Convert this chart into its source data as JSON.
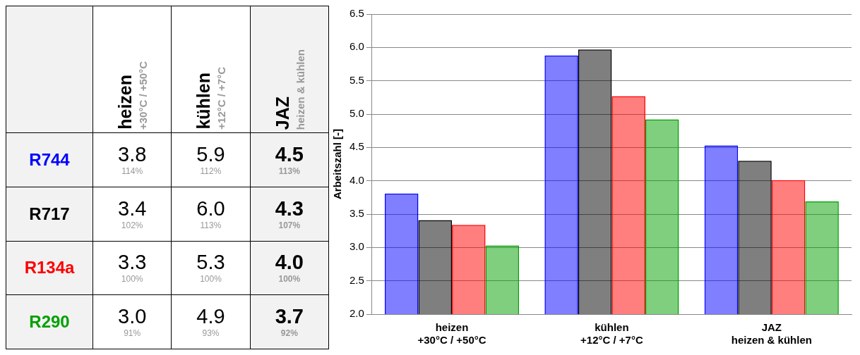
{
  "chart_data": [
    {
      "type": "other",
      "categories": [
        "heizen\n+30°C / +50°C",
        "kühlen\n+12°C / +7°C",
        "JAZ\nheizen & kühlen"
      ],
      "y_categories": [
        "R744",
        "R717",
        "R134a",
        "R290"
      ],
      "cell_labels": [
        [
          "3.8",
          "5.9",
          "4.5"
        ],
        [
          "3.4",
          "6.0",
          "4.3"
        ],
        [
          "3.3",
          "5.3",
          "4.0"
        ],
        [
          "3.0",
          "4.9",
          "3.7"
        ]
      ],
      "annotations": [
        "114%",
        "112%",
        "113%",
        "102%",
        "113%",
        "107%",
        "100%",
        "100%",
        "100%",
        "91%",
        "93%",
        "92%"
      ]
    },
    {
      "type": "bar",
      "ylabel": "Arbeitszahl [-]",
      "categories": [
        "heizen\n+30°C / +50°C",
        "kühlen\n+12°C / +7°C",
        "JAZ\nheizen & kühlen"
      ],
      "series": [
        {
          "color": "#0000ff",
          "values": [
            3.81,
            5.88,
            4.53
          ]
        },
        {
          "color": "#000000",
          "values": [
            3.41,
            5.97,
            4.3
          ]
        },
        {
          "color": "#ff0000",
          "values": [
            3.34,
            5.27,
            4.01
          ]
        },
        {
          "color": "#00a000",
          "values": [
            3.03,
            4.92,
            3.69
          ]
        }
      ],
      "ylim": [
        2.0,
        6.5
      ],
      "yticks": [
        {
          "value": 2,
          "label": "2.0"
        },
        {
          "value": 2.5,
          "label": "2.5"
        },
        {
          "value": 3,
          "label": "3.0"
        },
        {
          "value": 3.5,
          "label": "3.5"
        },
        {
          "value": 4,
          "label": "4.0"
        },
        {
          "value": 4.5,
          "label": "4.5"
        },
        {
          "value": 5,
          "label": "5.0"
        },
        {
          "value": 5.5,
          "label": "5.5"
        },
        {
          "value": 6,
          "label": "6.0"
        },
        {
          "value": 6.5,
          "label": "6.5"
        }
      ],
      "grid": "y",
      "legend": false
    }
  ]
}
